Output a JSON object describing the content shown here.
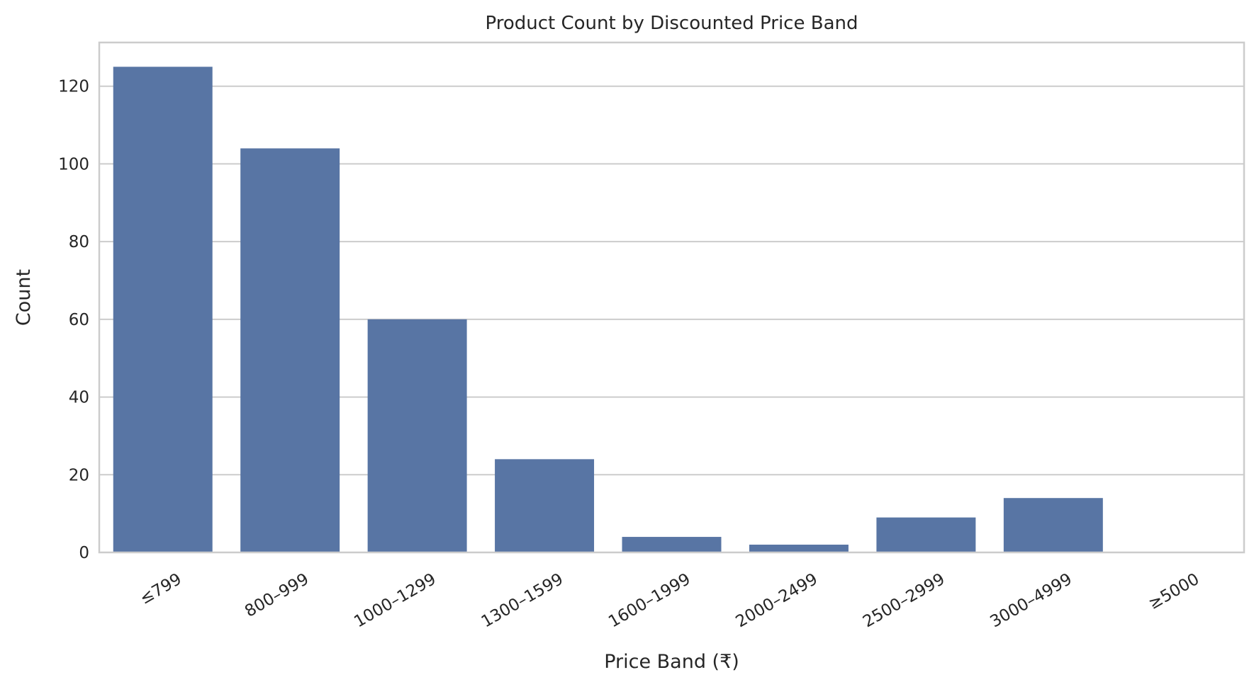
{
  "chart_data": {
    "type": "bar",
    "title": "Product Count by Discounted Price Band",
    "xlabel": "Price Band (₹)",
    "ylabel": "Count",
    "categories": [
      "≤799",
      "800–999",
      "1000–1299",
      "1300–1599",
      "1600–1999",
      "2000–2499",
      "2500–2999",
      "3000–4999",
      "≥5000"
    ],
    "values": [
      125,
      104,
      60,
      24,
      4,
      2,
      9,
      14,
      0
    ],
    "yticks": [
      0,
      20,
      40,
      60,
      80,
      100,
      120
    ],
    "ylim": [
      0,
      131.25
    ],
    "grid": true,
    "colors": {
      "bar": "#5875a4",
      "grid": "#cccccc",
      "text": "#262626"
    }
  }
}
